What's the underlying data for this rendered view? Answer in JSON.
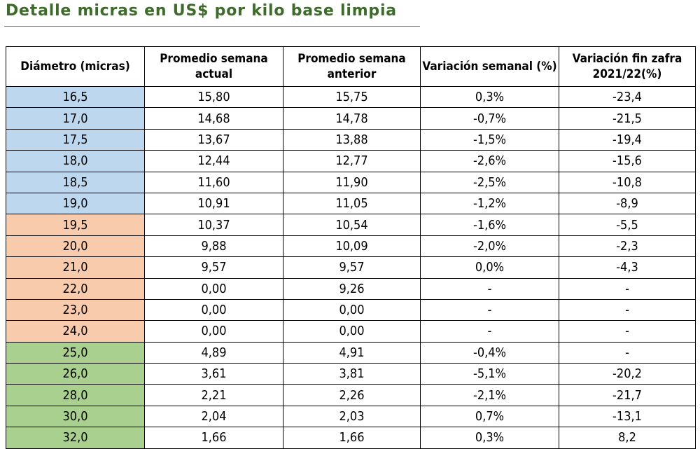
{
  "title": "Detalle micras en US$ por kilo base limpia",
  "colors": {
    "title": "#3d6b2a",
    "fine": "#bdd7ee",
    "medium": "#f8cbad",
    "coarse": "#a9d08e"
  },
  "headers": [
    "Diámetro (micras)",
    "Promedio semana actual",
    "Promedio semana anterior",
    "Variación semanal (%)",
    "Variación fin zafra 2021/22(%)"
  ],
  "rows": [
    {
      "diametro": "16,5",
      "actual": "15,80",
      "anterior": "15,75",
      "var_semanal": "0,3%",
      "var_zafra": "-23,4",
      "group": "blue"
    },
    {
      "diametro": "17,0",
      "actual": "14,68",
      "anterior": "14,78",
      "var_semanal": "-0,7%",
      "var_zafra": "-21,5",
      "group": "blue"
    },
    {
      "diametro": "17,5",
      "actual": "13,67",
      "anterior": "13,88",
      "var_semanal": "-1,5%",
      "var_zafra": "-19,4",
      "group": "blue"
    },
    {
      "diametro": "18,0",
      "actual": "12,44",
      "anterior": "12,77",
      "var_semanal": "-2,6%",
      "var_zafra": "-15,6",
      "group": "blue"
    },
    {
      "diametro": "18,5",
      "actual": "11,60",
      "anterior": "11,90",
      "var_semanal": "-2,5%",
      "var_zafra": "-10,8",
      "group": "blue"
    },
    {
      "diametro": "19,0",
      "actual": "10,91",
      "anterior": "11,05",
      "var_semanal": "-1,2%",
      "var_zafra": "-8,9",
      "group": "blue"
    },
    {
      "diametro": "19,5",
      "actual": "10,37",
      "anterior": "10,54",
      "var_semanal": "-1,6%",
      "var_zafra": "-5,5",
      "group": "orange"
    },
    {
      "diametro": "20,0",
      "actual": "9,88",
      "anterior": "10,09",
      "var_semanal": "-2,0%",
      "var_zafra": "-2,3",
      "group": "orange"
    },
    {
      "diametro": "21,0",
      "actual": "9,57",
      "anterior": "9,57",
      "var_semanal": "0,0%",
      "var_zafra": "-4,3",
      "group": "orange"
    },
    {
      "diametro": "22,0",
      "actual": "0,00",
      "anterior": "9,26",
      "var_semanal": "-",
      "var_zafra": "-",
      "group": "orange"
    },
    {
      "diametro": "23,0",
      "actual": "0,00",
      "anterior": "0,00",
      "var_semanal": "-",
      "var_zafra": "-",
      "group": "orange"
    },
    {
      "diametro": "24,0",
      "actual": "0,00",
      "anterior": "0,00",
      "var_semanal": "-",
      "var_zafra": "-",
      "group": "orange"
    },
    {
      "diametro": "25,0",
      "actual": "4,89",
      "anterior": "4,91",
      "var_semanal": "-0,4%",
      "var_zafra": "-",
      "group": "green"
    },
    {
      "diametro": "26,0",
      "actual": "3,61",
      "anterior": "3,81",
      "var_semanal": "-5,1%",
      "var_zafra": "-20,2",
      "group": "green"
    },
    {
      "diametro": "28,0",
      "actual": "2,21",
      "anterior": "2,26",
      "var_semanal": "-2,1%",
      "var_zafra": "-21,7",
      "group": "green"
    },
    {
      "diametro": "30,0",
      "actual": "2,04",
      "anterior": "2,03",
      "var_semanal": "0,7%",
      "var_zafra": "-13,1",
      "group": "green"
    },
    {
      "diametro": "32,0",
      "actual": "1,66",
      "anterior": "1,66",
      "var_semanal": "0,3%",
      "var_zafra": "8,2",
      "group": "green"
    }
  ]
}
